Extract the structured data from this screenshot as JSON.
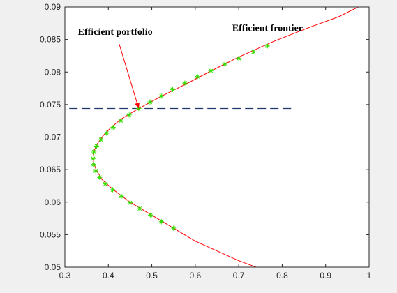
{
  "chart_data": {
    "type": "line",
    "title": "",
    "xlabel": "",
    "ylabel": "",
    "xlim": [
      0.3,
      1.0
    ],
    "ylim": [
      0.05,
      0.09
    ],
    "x_ticks": [
      0.3,
      0.4,
      0.5,
      0.6,
      0.7,
      0.8,
      0.9,
      1.0
    ],
    "x_tick_labels": [
      "0.3",
      "0.4",
      "0.5",
      "0.6",
      "0.7",
      "0.8",
      "0.9",
      "1"
    ],
    "y_ticks": [
      0.05,
      0.055,
      0.06,
      0.065,
      0.07,
      0.075,
      0.08,
      0.085,
      0.09
    ],
    "y_tick_labels": [
      "0.05",
      "0.055",
      "0.06",
      "0.065",
      "0.07",
      "0.075",
      "0.08",
      "0.085",
      "0.09"
    ],
    "grid": false,
    "frontier": {
      "color": "#ff0000",
      "points": [
        {
          "x": 0.74,
          "y": 0.05
        },
        {
          "x": 0.7,
          "y": 0.051
        },
        {
          "x": 0.65,
          "y": 0.0525
        },
        {
          "x": 0.6,
          "y": 0.054
        },
        {
          "x": 0.55,
          "y": 0.056
        },
        {
          "x": 0.5,
          "y": 0.058
        },
        {
          "x": 0.45,
          "y": 0.06
        },
        {
          "x": 0.41,
          "y": 0.062
        },
        {
          "x": 0.385,
          "y": 0.0635
        },
        {
          "x": 0.372,
          "y": 0.065
        },
        {
          "x": 0.366,
          "y": 0.066
        },
        {
          "x": 0.365,
          "y": 0.067
        },
        {
          "x": 0.368,
          "y": 0.068
        },
        {
          "x": 0.375,
          "y": 0.069
        },
        {
          "x": 0.388,
          "y": 0.0702
        },
        {
          "x": 0.405,
          "y": 0.0714
        },
        {
          "x": 0.43,
          "y": 0.0728
        },
        {
          "x": 0.47,
          "y": 0.0744
        },
        {
          "x": 0.52,
          "y": 0.0762
        },
        {
          "x": 0.58,
          "y": 0.0782
        },
        {
          "x": 0.64,
          "y": 0.0803
        },
        {
          "x": 0.7,
          "y": 0.0823
        },
        {
          "x": 0.78,
          "y": 0.0847
        },
        {
          "x": 0.86,
          "y": 0.0868
        },
        {
          "x": 0.93,
          "y": 0.0885
        },
        {
          "x": 0.975,
          "y": 0.09
        }
      ]
    },
    "portfolios": {
      "marker": "*",
      "color": "#33dd00",
      "points": [
        {
          "x": 0.55,
          "y": 0.056
        },
        {
          "x": 0.522,
          "y": 0.057
        },
        {
          "x": 0.497,
          "y": 0.058
        },
        {
          "x": 0.472,
          "y": 0.059
        },
        {
          "x": 0.45,
          "y": 0.0599
        },
        {
          "x": 0.43,
          "y": 0.0609
        },
        {
          "x": 0.41,
          "y": 0.0619
        },
        {
          "x": 0.393,
          "y": 0.0628
        },
        {
          "x": 0.38,
          "y": 0.0638
        },
        {
          "x": 0.371,
          "y": 0.0648
        },
        {
          "x": 0.366,
          "y": 0.0658
        },
        {
          "x": 0.365,
          "y": 0.0667
        },
        {
          "x": 0.367,
          "y": 0.0677
        },
        {
          "x": 0.373,
          "y": 0.0686
        },
        {
          "x": 0.383,
          "y": 0.0696
        },
        {
          "x": 0.396,
          "y": 0.0706
        },
        {
          "x": 0.411,
          "y": 0.0715
        },
        {
          "x": 0.429,
          "y": 0.0725
        },
        {
          "x": 0.448,
          "y": 0.0734
        },
        {
          "x": 0.47,
          "y": 0.0744
        },
        {
          "x": 0.496,
          "y": 0.0754
        },
        {
          "x": 0.522,
          "y": 0.0763
        },
        {
          "x": 0.548,
          "y": 0.0773
        },
        {
          "x": 0.576,
          "y": 0.0783
        },
        {
          "x": 0.605,
          "y": 0.0793
        },
        {
          "x": 0.636,
          "y": 0.0802
        },
        {
          "x": 0.668,
          "y": 0.0812
        },
        {
          "x": 0.7,
          "y": 0.0821
        },
        {
          "x": 0.734,
          "y": 0.0831
        },
        {
          "x": 0.766,
          "y": 0.084
        }
      ]
    },
    "reference_line": {
      "orientation": "horizontal",
      "style": "dashed",
      "color": "#1f3a68",
      "y": 0.0744,
      "x_from": 0.31,
      "x_to": 0.83
    },
    "annotations": [
      {
        "text": "Efficient portfolio",
        "x": 0.33,
        "y": 0.0857,
        "arrow_from": {
          "x": 0.425,
          "y": 0.0843
        },
        "arrow_to": {
          "x": 0.47,
          "y": 0.0744
        },
        "arrow_color": "#ff0000"
      },
      {
        "text": "Efficient frontier",
        "x": 0.685,
        "y": 0.0863
      }
    ]
  }
}
